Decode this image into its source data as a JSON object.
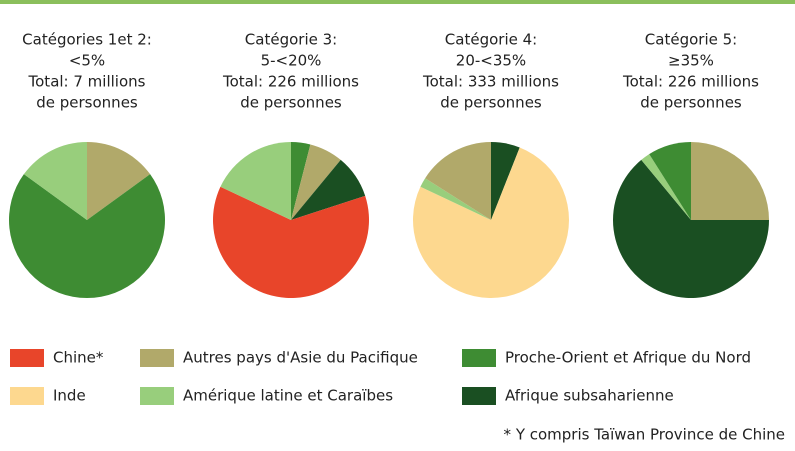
{
  "chart_data": [
    {
      "type": "pie",
      "title": [
        "Catégories 1et 2:",
        "<5%",
        "Total: 7 millions",
        "de personnes"
      ],
      "categories": [
        "Autres pays d'Asie du Pacifique",
        "Proche-Orient et Afrique du Nord",
        "Amérique latine et Caraïbes"
      ],
      "values": [
        15,
        70,
        15
      ],
      "colors": [
        "#b1a96a",
        "#3e8c33",
        "#98ce7c"
      ]
    },
    {
      "type": "pie",
      "title": [
        "Catégorie 3:",
        "5-<20%",
        "Total: 226 millions",
        "de personnes"
      ],
      "categories": [
        "Proche-Orient et Afrique du Nord",
        "Autres pays d'Asie du Pacifique",
        "Afrique subsaharienne",
        "Chine*",
        "Amérique latine et Caraïbes"
      ],
      "values": [
        4,
        7,
        9,
        62,
        18
      ],
      "colors": [
        "#3e8c33",
        "#b1a96a",
        "#1a4f22",
        "#e8452a",
        "#98ce7c"
      ]
    },
    {
      "type": "pie",
      "title": [
        "Catégorie 4:",
        "20-<35%",
        "Total: 333 millions",
        "de personnes"
      ],
      "categories": [
        "Afrique subsaharienne",
        "Inde",
        "Amérique latine et Caraïbes",
        "Autres pays d'Asie du Pacifique"
      ],
      "values": [
        6,
        76,
        2,
        16
      ],
      "colors": [
        "#1a4f22",
        "#fdd88f",
        "#98ce7c",
        "#b1a96a"
      ]
    },
    {
      "type": "pie",
      "title": [
        "Catégorie 5:",
        "≥35%",
        "Total: 226 millions",
        "de personnes"
      ],
      "categories": [
        "Autres pays d'Asie du Pacifique",
        "Afrique subsaharienne",
        "Amérique latine et Caraïbes",
        "Proche-Orient et Afrique du Nord"
      ],
      "values": [
        25,
        64,
        2,
        9
      ],
      "colors": [
        "#b1a96a",
        "#1a4f22",
        "#98ce7c",
        "#3e8c33"
      ]
    }
  ],
  "legend": [
    {
      "name": "Chine*",
      "color": "#e8452a"
    },
    {
      "name": "Autres pays d'Asie du Pacifique",
      "color": "#b1a96a"
    },
    {
      "name": "Proche-Orient et Afrique du Nord",
      "color": "#3e8c33"
    },
    {
      "name": "Inde",
      "color": "#fdd88f"
    },
    {
      "name": "Amérique latine et Caraïbes",
      "color": "#98ce7c"
    },
    {
      "name": "Afrique subsaharienne",
      "color": "#1a4f22"
    }
  ],
  "footnote": "* Y compris Taïwan Province de Chine"
}
